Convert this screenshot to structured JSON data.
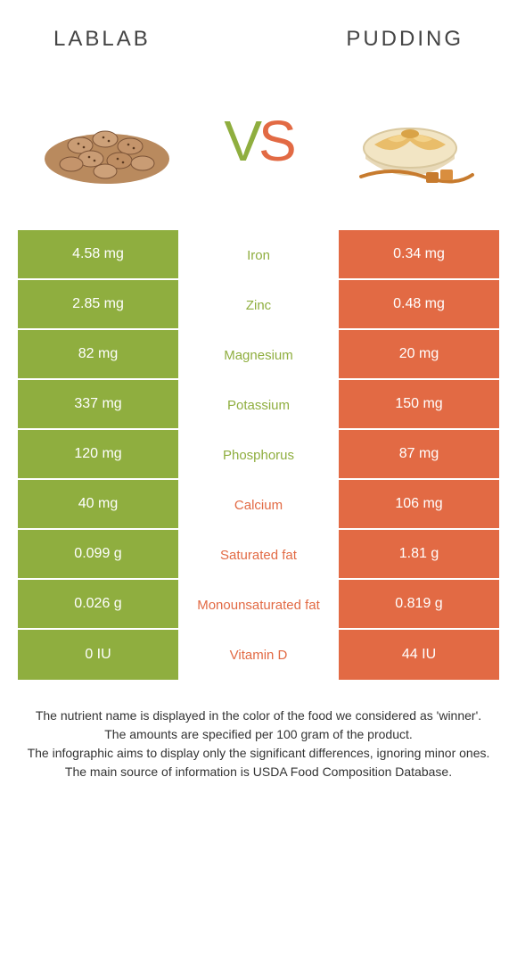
{
  "header": {
    "left": "Lablab",
    "right": "Pudding"
  },
  "vs": {
    "v": "V",
    "s": "S"
  },
  "colors": {
    "green": "#8fae3f",
    "orange": "#e26a44",
    "text": "#333333",
    "bg": "#ffffff"
  },
  "rows": [
    {
      "left": "4.58 mg",
      "label": "Iron",
      "right": "0.34 mg",
      "winner": "green"
    },
    {
      "left": "2.85 mg",
      "label": "Zinc",
      "right": "0.48 mg",
      "winner": "green"
    },
    {
      "left": "82 mg",
      "label": "Magnesium",
      "right": "20 mg",
      "winner": "green"
    },
    {
      "left": "337 mg",
      "label": "Potassium",
      "right": "150 mg",
      "winner": "green"
    },
    {
      "left": "120 mg",
      "label": "Phosphorus",
      "right": "87 mg",
      "winner": "green"
    },
    {
      "left": "40 mg",
      "label": "Calcium",
      "right": "106 mg",
      "winner": "orange"
    },
    {
      "left": "0.099 g",
      "label": "Saturated fat",
      "right": "1.81 g",
      "winner": "orange"
    },
    {
      "left": "0.026 g",
      "label": "Monounsaturated fat",
      "right": "0.819 g",
      "winner": "orange"
    },
    {
      "left": "0 IU",
      "label": "Vitamin D",
      "right": "44 IU",
      "winner": "orange"
    }
  ],
  "footer": {
    "l1": "The nutrient name is displayed in the color of the food we considered as 'winner'.",
    "l2": "The amounts are specified per 100 gram of the product.",
    "l3": "The infographic aims to display only the significant differences, ignoring minor ones.",
    "l4": "The main source of information is USDA Food Composition Database."
  }
}
